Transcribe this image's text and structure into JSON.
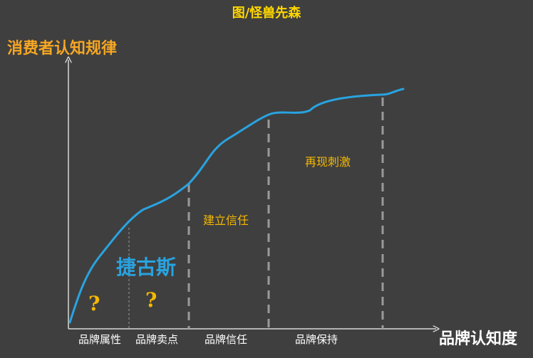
{
  "caption": "图/怪兽先森",
  "axes": {
    "y_title": "消费者认知规律",
    "x_title": "品牌认知度"
  },
  "brand_label": "捷古斯",
  "question_mark": "?",
  "phase_labels": [
    "建立信任",
    "再现刺激"
  ],
  "stages": [
    "品牌属性",
    "品牌卖点",
    "品牌信任",
    "品牌保持"
  ],
  "colors": {
    "background": "#3f3f3f",
    "curve": "#29a3e0",
    "caption": "#ffd700",
    "axis_title": "#f5a623",
    "accent": "#f5b800",
    "axis": "#d8d8d8",
    "divider": "#9a9a9a"
  }
}
